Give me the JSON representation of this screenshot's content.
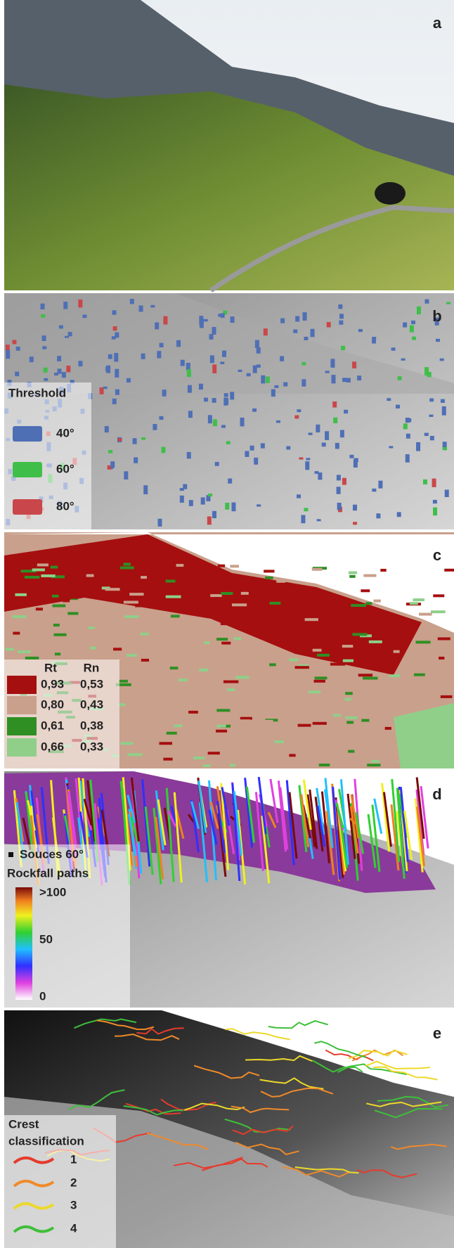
{
  "panels": [
    {
      "label": "a"
    },
    {
      "label": "b",
      "legend": {
        "title": "Threshold",
        "items": [
          {
            "label": "40°",
            "color": "#4f6fb5"
          },
          {
            "label": "60°",
            "color": "#3fbf4a"
          },
          {
            "label": "80°",
            "color": "#c9474a"
          }
        ]
      }
    },
    {
      "label": "c",
      "legend": {
        "headers": [
          "Rt",
          "Rn"
        ],
        "rows": [
          {
            "color": "#a50f0f",
            "cells": [
              "0,93",
              "0,53"
            ]
          },
          {
            "color": "#c9a08c",
            "cells": [
              "0,80",
              "0,43"
            ]
          },
          {
            "color": "#2f8f23",
            "cells": [
              "0,61",
              "0,38"
            ]
          },
          {
            "color": "#8fcf8a",
            "cells": [
              "0,66",
              "0,33"
            ]
          }
        ]
      }
    },
    {
      "label": "d",
      "legend": {
        "sources": "Souces 60°",
        "title": "Rockfall paths",
        "ticks": [
          ">100",
          "50",
          "0"
        ]
      }
    },
    {
      "label": "e",
      "legend": {
        "title": [
          "Crest",
          "classification"
        ],
        "items": [
          {
            "label": "1",
            "color": "#e53b2c"
          },
          {
            "label": "2",
            "color": "#f08a2a"
          },
          {
            "label": "3",
            "color": "#ecd92a"
          },
          {
            "label": "4",
            "color": "#3fbf3a"
          }
        ]
      }
    }
  ]
}
